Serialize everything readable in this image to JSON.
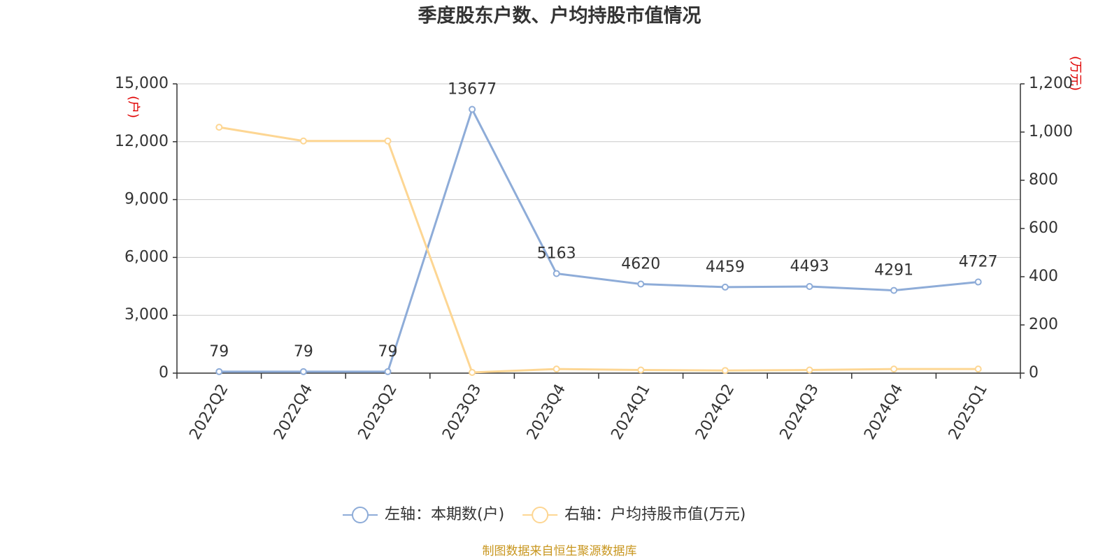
{
  "chart_data": {
    "type": "line",
    "title": "季度股东户数、户均持股市值情况",
    "y_label": "(户)",
    "y2_label": "(万元)",
    "source": "制图数据来自恒生聚源数据库",
    "categories": [
      "2022Q2",
      "2022Q4",
      "2023Q2",
      "2023Q3",
      "2023Q4",
      "2024Q1",
      "2024Q2",
      "2024Q3",
      "2024Q4",
      "2025Q1"
    ],
    "series": [
      {
        "name": "左轴：本期数(户)",
        "color": "#8eacd8",
        "values": [
          79,
          79,
          79,
          13677,
          5163,
          4620,
          4459,
          4493,
          4291,
          4727
        ]
      },
      {
        "name": "右轴：户均持股市值(万元)",
        "color": "#fdd693",
        "axis": "y2",
        "values": [
          1020,
          963,
          963,
          3,
          17,
          13,
          11,
          13,
          17,
          17
        ]
      }
    ],
    "ylim": [
      0,
      15000
    ],
    "yticks": [
      0,
      {
        "value": 3000,
        "label": "3,000"
      },
      {
        "value": 6000,
        "label": "6,000"
      },
      {
        "value": 9000,
        "label": "9,000"
      },
      {
        "value": 12000,
        "label": "12,000"
      },
      {
        "value": 15000,
        "label": "15,000"
      }
    ],
    "y2lim": [
      0,
      1200
    ],
    "y2ticks": [
      0,
      200,
      400,
      600,
      800,
      {
        "value": 1000,
        "label": "1,000"
      },
      {
        "value": 1200,
        "label": "1,200"
      }
    ],
    "grid": true
  }
}
